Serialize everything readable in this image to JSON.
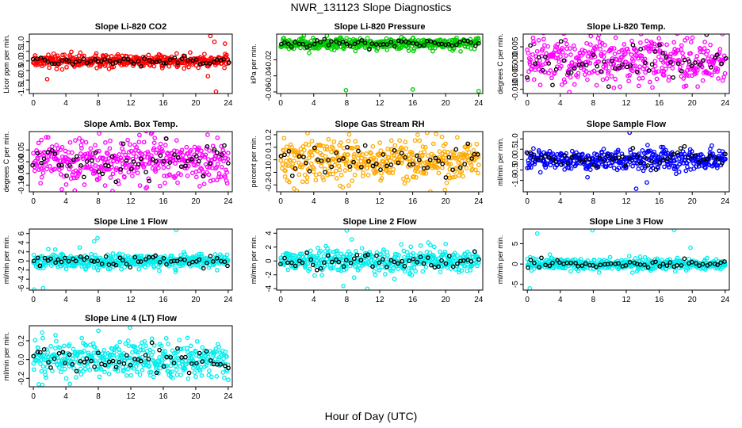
{
  "figure": {
    "title": "NWR_131123  Slope Diagnostics",
    "xlabel": "Hour of Day (UTC)"
  },
  "chart_data": [
    {
      "type": "scatter",
      "title": "Slope Li-820 CO2",
      "ylabel": "Licor ppm per min.",
      "xlim": [
        -0.5,
        24.5
      ],
      "ylim": [
        -1.7,
        1.4
      ],
      "xticks": [
        0,
        4,
        8,
        12,
        16,
        20,
        24
      ],
      "yticks": [
        -1.5,
        -1.0,
        -0.5,
        0.0,
        0.5,
        1.0
      ],
      "ytick_labels": [
        "-1.5",
        "-1.0",
        "-0.5",
        "0.0",
        "0.5",
        "1.0"
      ],
      "color": "#ff0000",
      "noise_sd": 0.16,
      "outliers": [
        {
          "x": 1.7,
          "y": -0.95
        },
        {
          "x": 21.8,
          "y": 1.3
        },
        {
          "x": 22.3,
          "y": 1.0
        },
        {
          "x": 22.5,
          "y": -1.6
        },
        {
          "x": 21.5,
          "y": -0.8
        },
        {
          "x": 23.6,
          "y": 0.9
        }
      ]
    },
    {
      "type": "scatter",
      "title": "Slope Li-820 Pressure",
      "ylabel": "kPa per min.",
      "xlim": [
        -0.5,
        24.5
      ],
      "ylim": [
        -0.062,
        0.012
      ],
      "xticks": [
        0,
        4,
        8,
        12,
        16,
        20,
        24
      ],
      "yticks": [
        -0.06,
        -0.04,
        -0.02
      ],
      "ytick_labels": [
        "-0.06",
        "-0.04",
        "-0.02"
      ],
      "color": "#00cc00",
      "noise_sd": 0.0035,
      "outliers": [
        {
          "x": 7.9,
          "y": -0.058
        },
        {
          "x": 16.0,
          "y": -0.057
        },
        {
          "x": 24.0,
          "y": -0.059
        },
        {
          "x": 5.6,
          "y": 0.01
        }
      ]
    },
    {
      "type": "scatter",
      "title": "Slope Li-820 Temp.",
      "ylabel": "degrees C per min.",
      "xlim": [
        -0.5,
        24.5
      ],
      "ylim": [
        -0.0115,
        0.0095
      ],
      "xticks": [
        0,
        4,
        8,
        12,
        16,
        20,
        24
      ],
      "yticks": [
        -0.01,
        -0.005,
        0.0,
        0.005
      ],
      "ytick_labels": [
        "-0.010",
        "-0.005",
        "0.000",
        "0.005"
      ],
      "color": "#ff00ff",
      "noise_sd": 0.0042,
      "outliers": [
        {
          "x": 7.7,
          "y": 0.0088
        },
        {
          "x": 5.1,
          "y": -0.011
        },
        {
          "x": 10.5,
          "y": -0.0095
        }
      ]
    },
    {
      "type": "scatter",
      "title": "Slope Amb. Box Temp.",
      "ylabel": "degrees C per min.",
      "xlim": [
        -0.5,
        24.5
      ],
      "ylim": [
        -0.128,
        0.128
      ],
      "xticks": [
        0,
        4,
        8,
        12,
        16,
        20,
        24
      ],
      "yticks": [
        -0.1,
        -0.05,
        0.0,
        0.05
      ],
      "ytick_labels": [
        "-0.10",
        "-0.05",
        "0.00",
        "0.05"
      ],
      "color": "#ff00ff",
      "noise_sd": 0.045,
      "outliers": [
        {
          "x": 8.1,
          "y": 0.12
        },
        {
          "x": 3.5,
          "y": -0.118
        }
      ]
    },
    {
      "type": "scatter",
      "title": "Slope Gas Stream RH",
      "ylabel": "percent per min.",
      "xlim": [
        -0.5,
        24.5
      ],
      "ylim": [
        -0.255,
        0.225
      ],
      "xticks": [
        0,
        4,
        8,
        12,
        16,
        20,
        24
      ],
      "yticks": [
        -0.2,
        -0.1,
        0.0,
        0.1,
        0.2
      ],
      "ytick_labels": [
        "-0.2",
        "-0.1",
        "0.0",
        "0.1",
        "0.2"
      ],
      "color": "#ffaa00",
      "noise_sd": 0.085,
      "outliers": [
        {
          "x": 1.6,
          "y": -0.23
        },
        {
          "x": 19.9,
          "y": -0.24
        },
        {
          "x": 16.6,
          "y": 0.2
        }
      ]
    },
    {
      "type": "scatter",
      "title": "Slope Sample Flow",
      "ylabel": "ml/min per min.",
      "xlim": [
        -0.5,
        24.5
      ],
      "ylim": [
        -1.55,
        1.35
      ],
      "xticks": [
        0,
        4,
        8,
        12,
        16,
        20,
        24
      ],
      "yticks": [
        -1.0,
        -0.5,
        0.0,
        0.5,
        1.0
      ],
      "ytick_labels": [
        "-1.0",
        "-0.5",
        "0.0",
        "0.5",
        "1.0"
      ],
      "color": "#0000ff",
      "noise_sd": 0.24,
      "outliers": [
        {
          "x": 12.4,
          "y": 1.3
        },
        {
          "x": 13.2,
          "y": -1.4
        },
        {
          "x": 14.5,
          "y": -1.1
        },
        {
          "x": 7.3,
          "y": -0.85
        }
      ]
    },
    {
      "type": "scatter",
      "title": "Slope Line 1 Flow",
      "ylabel": "ml/min per min.",
      "xlim": [
        -0.5,
        24.5
      ],
      "ylim": [
        -6.4,
        7.0
      ],
      "xticks": [
        0,
        4,
        8,
        12,
        16,
        20,
        24
      ],
      "yticks": [
        -6,
        -4,
        -2,
        0,
        2,
        4,
        6
      ],
      "ytick_labels": [
        "-6",
        "-4",
        "-2",
        "0",
        "2",
        "4",
        "6"
      ],
      "color": "#00eeee",
      "noise_sd": 0.8,
      "outliers": [
        {
          "x": 1.2,
          "y": -6.0
        },
        {
          "x": 0.1,
          "y": -6.3
        },
        {
          "x": 17.6,
          "y": 6.8
        },
        {
          "x": 7.5,
          "y": 4.3
        },
        {
          "x": 7.9,
          "y": 5.0
        }
      ]
    },
    {
      "type": "scatter",
      "title": "Slope Line 2 Flow",
      "ylabel": "ml/min per min.",
      "xlim": [
        -0.5,
        24.5
      ],
      "ylim": [
        -4.2,
        4.6
      ],
      "xticks": [
        0,
        4,
        8,
        12,
        16,
        20,
        24
      ],
      "yticks": [
        -4,
        -2,
        0,
        2,
        4
      ],
      "ytick_labels": [
        "-4",
        "-2",
        "0",
        "2",
        "4"
      ],
      "color": "#00eeee",
      "noise_sd": 0.85,
      "outliers": [
        {
          "x": 8.0,
          "y": 4.4
        },
        {
          "x": 8.6,
          "y": 3.1
        },
        {
          "x": 10.5,
          "y": -4.0
        },
        {
          "x": 7.6,
          "y": -3.6
        }
      ]
    },
    {
      "type": "scatter",
      "title": "Slope Line 3 Flow",
      "ylabel": "ml/min per min.",
      "xlim": [
        -0.5,
        24.5
      ],
      "ylim": [
        -6.4,
        8.6
      ],
      "xticks": [
        0,
        4,
        8,
        12,
        16,
        20,
        24
      ],
      "yticks": [
        -5,
        0,
        5
      ],
      "ytick_labels": [
        "-5",
        "0",
        "5"
      ],
      "color": "#00eeee",
      "noise_sd": 0.7,
      "outliers": [
        {
          "x": 0.3,
          "y": -6.0
        },
        {
          "x": 1.2,
          "y": 7.5
        },
        {
          "x": 7.9,
          "y": 8.3
        },
        {
          "x": 17.8,
          "y": 8.4
        },
        {
          "x": 19.8,
          "y": 4.0
        }
      ]
    },
    {
      "type": "scatter",
      "title": "Slope Line 4 (LT) Flow",
      "ylabel": "ml/min per min.",
      "xlim": [
        -0.5,
        24.5
      ],
      "ylim": [
        -0.29,
        0.36
      ],
      "xticks": [
        0,
        4,
        8,
        12,
        16,
        20,
        24
      ],
      "yticks": [
        -0.2,
        0.0,
        0.2
      ],
      "ytick_labels": [
        "-0.2",
        "0.0",
        "0.2"
      ],
      "color": "#00eeee",
      "noise_sd": 0.09,
      "outliers": [
        {
          "x": 11.9,
          "y": 0.34
        },
        {
          "x": 1.1,
          "y": -0.27
        }
      ]
    }
  ]
}
